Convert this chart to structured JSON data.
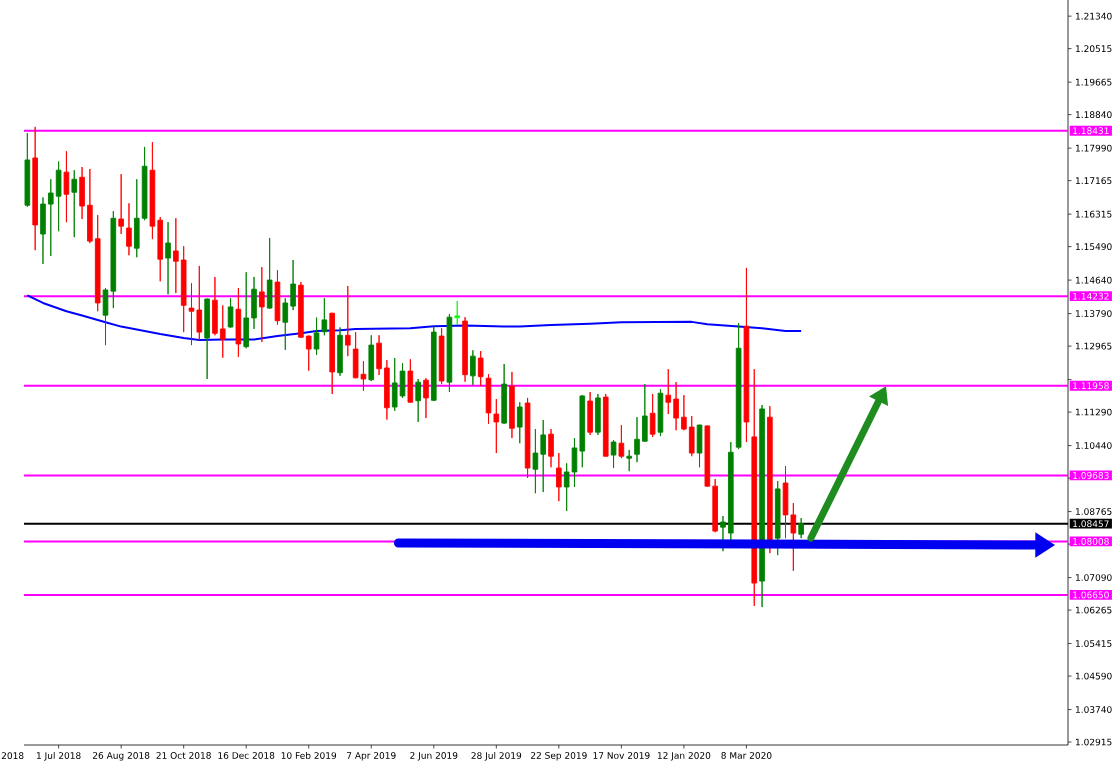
{
  "chart_data": {
    "type": "candlestick",
    "x": [
      "2018-06-03",
      "2018-06-10",
      "2018-06-17",
      "2018-06-24",
      "2018-07-01",
      "2018-07-08",
      "2018-07-15",
      "2018-07-22",
      "2018-07-29",
      "2018-08-05",
      "2018-08-12",
      "2018-08-19",
      "2018-08-26",
      "2018-09-02",
      "2018-09-09",
      "2018-09-16",
      "2018-09-23",
      "2018-09-30",
      "2018-10-07",
      "2018-10-14",
      "2018-10-21",
      "2018-10-28",
      "2018-11-04",
      "2018-11-11",
      "2018-11-18",
      "2018-11-25",
      "2018-12-02",
      "2018-12-09",
      "2018-12-16",
      "2018-12-23",
      "2018-12-30",
      "2019-01-06",
      "2019-01-13",
      "2019-01-20",
      "2019-01-27",
      "2019-02-03",
      "2019-02-10",
      "2019-02-17",
      "2019-02-24",
      "2019-03-03",
      "2019-03-10",
      "2019-03-17",
      "2019-03-24",
      "2019-03-31",
      "2019-04-07",
      "2019-04-14",
      "2019-04-21",
      "2019-04-28",
      "2019-05-05",
      "2019-05-12",
      "2019-05-19",
      "2019-05-26",
      "2019-06-02",
      "2019-06-09",
      "2019-06-16",
      "2019-06-23",
      "2019-06-30",
      "2019-07-07",
      "2019-07-14",
      "2019-07-21",
      "2019-07-28",
      "2019-08-04",
      "2019-08-11",
      "2019-08-18",
      "2019-08-25",
      "2019-09-01",
      "2019-09-08",
      "2019-09-15",
      "2019-09-22",
      "2019-09-29",
      "2019-10-06",
      "2019-10-13",
      "2019-10-20",
      "2019-10-27",
      "2019-11-03",
      "2019-11-10",
      "2019-11-17",
      "2019-11-24",
      "2019-12-01",
      "2019-12-08",
      "2019-12-15",
      "2019-12-22",
      "2019-12-29",
      "2020-01-05",
      "2020-01-12",
      "2020-01-19",
      "2020-01-26",
      "2020-02-02",
      "2020-02-09",
      "2020-02-16",
      "2020-02-23",
      "2020-03-01",
      "2020-03-08",
      "2020-03-15",
      "2020-03-22",
      "2020-03-29",
      "2020-04-05",
      "2020-04-12",
      "2020-04-19",
      "2020-04-26"
    ],
    "ohlc": [
      [
        1.1654,
        1.1837,
        1.165,
        1.1769
      ],
      [
        1.1774,
        1.1853,
        1.154,
        1.1604
      ],
      [
        1.1581,
        1.1674,
        1.1505,
        1.1657
      ],
      [
        1.1657,
        1.172,
        1.1525,
        1.1685
      ],
      [
        1.1677,
        1.1765,
        1.1588,
        1.1743
      ],
      [
        1.1738,
        1.1791,
        1.1611,
        1.1682
      ],
      [
        1.1687,
        1.1743,
        1.1573,
        1.172
      ],
      [
        1.1725,
        1.1751,
        1.1619,
        1.1652
      ],
      [
        1.1654,
        1.1746,
        1.1558,
        1.1563
      ],
      [
        1.1569,
        1.1629,
        1.1385,
        1.1406
      ],
      [
        1.1375,
        1.1444,
        1.1299,
        1.1439
      ],
      [
        1.1436,
        1.1639,
        1.1393,
        1.1621
      ],
      [
        1.1619,
        1.1733,
        1.1581,
        1.1601
      ],
      [
        1.1596,
        1.1659,
        1.1527,
        1.155
      ],
      [
        1.1545,
        1.172,
        1.1522,
        1.1621
      ],
      [
        1.1621,
        1.1802,
        1.1616,
        1.1753
      ],
      [
        1.1743,
        1.1814,
        1.1568,
        1.1601
      ],
      [
        1.1616,
        1.1624,
        1.1461,
        1.1517
      ],
      [
        1.152,
        1.1611,
        1.1428,
        1.1558
      ],
      [
        1.1538,
        1.1621,
        1.1431,
        1.1512
      ],
      [
        1.1515,
        1.155,
        1.1332,
        1.14
      ],
      [
        1.1393,
        1.1456,
        1.1299,
        1.1385
      ],
      [
        1.1388,
        1.15,
        1.1312,
        1.1332
      ],
      [
        1.1317,
        1.1417,
        1.1213,
        1.1416
      ],
      [
        1.1413,
        1.1472,
        1.1324,
        1.1329
      ],
      [
        1.134,
        1.14,
        1.1267,
        1.1314
      ],
      [
        1.1345,
        1.1418,
        1.1343,
        1.1396
      ],
      [
        1.139,
        1.1444,
        1.1269,
        1.1302
      ],
      [
        1.1295,
        1.1484,
        1.1291,
        1.1368
      ],
      [
        1.1368,
        1.1472,
        1.134,
        1.1441
      ],
      [
        1.1434,
        1.1497,
        1.1307,
        1.1396
      ],
      [
        1.1393,
        1.1571,
        1.1391,
        1.1464
      ],
      [
        1.1459,
        1.1489,
        1.1351,
        1.1361
      ],
      [
        1.1357,
        1.1418,
        1.1287,
        1.1406
      ],
      [
        1.1398,
        1.1515,
        1.1388,
        1.1454
      ],
      [
        1.1451,
        1.1459,
        1.1318,
        1.1319
      ],
      [
        1.1322,
        1.1323,
        1.1234,
        1.1289
      ],
      [
        1.1289,
        1.1369,
        1.1274,
        1.133
      ],
      [
        1.1333,
        1.1418,
        1.1324,
        1.1363
      ],
      [
        1.138,
        1.1381,
        1.1175,
        1.1231
      ],
      [
        1.1229,
        1.1344,
        1.1221,
        1.1324
      ],
      [
        1.1324,
        1.1449,
        1.1271,
        1.1299
      ],
      [
        1.1289,
        1.1332,
        1.1215,
        1.1216
      ],
      [
        1.1225,
        1.1258,
        1.1183,
        1.1213
      ],
      [
        1.1211,
        1.1324,
        1.1208,
        1.1299
      ],
      [
        1.1304,
        1.1324,
        1.1223,
        1.1239
      ],
      [
        1.1241,
        1.1261,
        1.111,
        1.114
      ],
      [
        1.1142,
        1.1266,
        1.1132,
        1.1203
      ],
      [
        1.117,
        1.1253,
        1.1165,
        1.1233
      ],
      [
        1.1233,
        1.1263,
        1.1153,
        1.1154
      ],
      [
        1.1158,
        1.1213,
        1.1104,
        1.1205
      ],
      [
        1.121,
        1.1215,
        1.1114,
        1.1165
      ],
      [
        1.1159,
        1.1346,
        1.1157,
        1.1332
      ],
      [
        1.1322,
        1.1342,
        1.12,
        1.1208
      ],
      [
        1.1205,
        1.1378,
        1.118,
        1.137
      ],
      [
        1.1371,
        1.1411,
        1.135,
        1.1371
      ],
      [
        1.136,
        1.137,
        1.1206,
        1.1224
      ],
      [
        1.1221,
        1.1286,
        1.1198,
        1.1271
      ],
      [
        1.1266,
        1.1284,
        1.1195,
        1.1219
      ],
      [
        1.1215,
        1.1225,
        1.1099,
        1.1127
      ],
      [
        1.1124,
        1.1162,
        1.1025,
        1.1104
      ],
      [
        1.1101,
        1.1251,
        1.1099,
        1.12
      ],
      [
        1.1195,
        1.1231,
        1.1063,
        1.1088
      ],
      [
        1.1091,
        1.1154,
        1.105,
        1.1142
      ],
      [
        1.1152,
        1.1165,
        1.0962,
        1.0987
      ],
      [
        1.0984,
        1.1086,
        1.0923,
        1.1025
      ],
      [
        1.1022,
        1.1109,
        1.0926,
        1.1071
      ],
      [
        1.1073,
        1.1086,
        1.0989,
        1.1017
      ],
      [
        1.0987,
        1.1025,
        1.0903,
        1.0939
      ],
      [
        1.0939,
        1.0999,
        1.0878,
        1.0977
      ],
      [
        1.0977,
        1.1063,
        1.0939,
        1.1038
      ],
      [
        1.103,
        1.1172,
        1.0989,
        1.117
      ],
      [
        1.1157,
        1.118,
        1.1071,
        1.1078
      ],
      [
        1.1078,
        1.1175,
        1.1071,
        1.1165
      ],
      [
        1.1167,
        1.1175,
        1.1016,
        1.1017
      ],
      [
        1.102,
        1.1058,
        1.0987,
        1.1053
      ],
      [
        1.105,
        1.1096,
        1.1012,
        1.1017
      ],
      [
        1.1012,
        1.1033,
        1.0979,
        1.1017
      ],
      [
        1.1022,
        1.1116,
        1.1002,
        1.106
      ],
      [
        1.1055,
        1.12,
        1.1054,
        1.1119
      ],
      [
        1.1126,
        1.1175,
        1.1066,
        1.1073
      ],
      [
        1.1078,
        1.1187,
        1.1068,
        1.1177
      ],
      [
        1.1172,
        1.1238,
        1.1124,
        1.1154
      ],
      [
        1.1162,
        1.1205,
        1.1083,
        1.1114
      ],
      [
        1.1116,
        1.1172,
        1.1083,
        1.1086
      ],
      [
        1.1091,
        1.1119,
        1.1017,
        1.1025
      ],
      [
        1.1025,
        1.1097,
        1.0989,
        1.1096
      ],
      [
        1.1094,
        1.1095,
        1.094,
        1.0941
      ],
      [
        1.0941,
        1.0959,
        1.0824,
        1.0827
      ],
      [
        1.0837,
        1.0865,
        1.0776,
        1.085
      ],
      [
        1.0822,
        1.1053,
        1.0802,
        1.1027
      ],
      [
        1.104,
        1.1355,
        1.1035,
        1.1291
      ],
      [
        1.1347,
        1.1495,
        1.1053,
        1.1104
      ],
      [
        1.1066,
        1.1238,
        1.0637,
        1.0695
      ],
      [
        1.07,
        1.1147,
        1.0634,
        1.1137
      ],
      [
        1.1116,
        1.1144,
        1.0771,
        1.0804
      ],
      [
        1.0809,
        1.0954,
        1.0766,
        1.0934
      ],
      [
        1.0949,
        1.0992,
        1.0809,
        1.0868
      ],
      [
        1.0868,
        1.0898,
        1.0726,
        1.0822
      ],
      [
        1.0819,
        1.086,
        1.0809,
        1.0846
      ]
    ],
    "colors": [
      "#008000",
      "#ff0000",
      "#008000",
      "#008000",
      "#008000",
      "#ff0000",
      "#008000",
      "#ff0000",
      "#ff0000",
      "#ff0000",
      "#008000",
      "#008000",
      "#ff0000",
      "#ff0000",
      "#008000",
      "#008000",
      "#ff0000",
      "#ff0000",
      "#008000",
      "#ff0000",
      "#ff0000",
      "#ff0000",
      "#ff0000",
      "#008000",
      "#ff0000",
      "#ff0000",
      "#008000",
      "#ff0000",
      "#008000",
      "#008000",
      "#ff0000",
      "#008000",
      "#ff0000",
      "#008000",
      "#008000",
      "#ff0000",
      "#ff0000",
      "#008000",
      "#008000",
      "#ff0000",
      "#008000",
      "#ff0000",
      "#ff0000",
      "#ff0000",
      "#008000",
      "#ff0000",
      "#ff0000",
      "#008000",
      "#008000",
      "#ff0000",
      "#008000",
      "#ff0000",
      "#008000",
      "#ff0000",
      "#008000",
      "#00ff00",
      "#ff0000",
      "#008000",
      "#ff0000",
      "#ff0000",
      "#ff0000",
      "#008000",
      "#ff0000",
      "#008000",
      "#ff0000",
      "#008000",
      "#008000",
      "#ff0000",
      "#ff0000",
      "#008000",
      "#008000",
      "#008000",
      "#ff0000",
      "#008000",
      "#ff0000",
      "#008000",
      "#ff0000",
      "#008000",
      "#008000",
      "#008000",
      "#ff0000",
      "#008000",
      "#ff0000",
      "#ff0000",
      "#ff0000",
      "#ff0000",
      "#008000",
      "#ff0000",
      "#ff0000",
      "#008000",
      "#008000",
      "#008000",
      "#ff0000",
      "#ff0000",
      "#008000",
      "#ff0000",
      "#008000",
      "#ff0000",
      "#ff0000",
      "#008000"
    ],
    "series": [
      {
        "type": "line",
        "color": "#0000ff",
        "x": [
          "2018-06-03",
          "2018-06-17",
          "2018-07-08",
          "2018-07-22",
          "2018-08-12",
          "2018-08-26",
          "2018-09-16",
          "2018-09-30",
          "2018-10-21",
          "2018-11-04",
          "2018-11-25",
          "2018-12-23",
          "2019-01-13",
          "2019-02-03",
          "2019-02-17",
          "2019-03-10",
          "2019-03-24",
          "2019-05-12",
          "2019-06-02",
          "2019-06-30",
          "2019-08-04",
          "2019-08-18",
          "2019-09-15",
          "2019-10-20",
          "2019-11-17",
          "2020-01-19",
          "2020-02-02",
          "2020-03-01",
          "2020-03-22",
          "2020-04-12",
          "2020-04-26"
        ],
        "values": [
          1.1425,
          1.1406,
          1.1385,
          1.1374,
          1.1357,
          1.1346,
          1.1335,
          1.1327,
          1.1317,
          1.1312,
          1.1313,
          1.1313,
          1.1322,
          1.1329,
          1.1335,
          1.1337,
          1.134,
          1.1342,
          1.1347,
          1.1349,
          1.1346,
          1.1346,
          1.135,
          1.1353,
          1.1357,
          1.1358,
          1.1352,
          1.1346,
          1.1342,
          1.1335,
          1.1335
        ]
      }
    ],
    "xlim": [
      "2018-05-31",
      "2020-12-21"
    ],
    "xticks": [
      {
        "value": "2018-07-01",
        "label": "1 Jul 2018"
      },
      {
        "value": "2018-08-26",
        "label": "26 Aug 2018"
      },
      {
        "value": "2018-10-21",
        "label": "21 Oct 2018"
      },
      {
        "value": "2018-12-16",
        "label": "16 Dec 2018"
      },
      {
        "value": "2019-02-10",
        "label": "10 Feb 2019"
      },
      {
        "value": "2019-04-07",
        "label": "7 Apr 2019"
      },
      {
        "value": "2019-06-02",
        "label": "2 Jun 2019"
      },
      {
        "value": "2019-07-28",
        "label": "28 Jul 2019"
      },
      {
        "value": "2019-09-22",
        "label": "22 Sep 2019"
      },
      {
        "value": "2019-11-17",
        "label": "17 Nov 2019"
      },
      {
        "value": "2020-01-12",
        "label": "12 Jan 2020"
      },
      {
        "value": "2020-03-08",
        "label": "8 Mar 2020"
      }
    ],
    "ylim": [
      1.0284,
      1.2175
    ],
    "yticks": [
      {
        "value": 1.2134,
        "label": "1.21340"
      },
      1.20515,
      1.19665,
      {
        "value": 1.1884,
        "label": "1.18840"
      },
      {
        "value": 1.1799,
        "label": "1.17990"
      },
      1.17165,
      1.16315,
      {
        "value": 1.1549,
        "label": "1.15490"
      },
      {
        "value": 1.1464,
        "label": "1.14640"
      },
      {
        "value": 1.1379,
        "label": "1.13790"
      },
      1.12965,
      {
        "value": 1.12115,
        "label": null
      },
      {
        "value": 1.1129,
        "label": "1.11290"
      },
      {
        "value": 1.1044,
        "label": "1.10440"
      },
      {
        "value": 1.09615,
        "label": null
      },
      1.08765,
      {
        "value": 1.0794,
        "label": null
      },
      {
        "value": 1.0709,
        "label": "1.07090"
      },
      1.06265,
      1.05415,
      {
        "value": 1.0459,
        "label": "1.04590"
      },
      {
        "value": 1.0374,
        "label": "1.03740"
      },
      1.02915
    ],
    "ref_lines": [
      {
        "axis": "y",
        "value": 1.18431,
        "label": "1.18431",
        "color": "#ff00ff"
      },
      {
        "axis": "y",
        "value": 1.14232,
        "label": "1.14232",
        "color": "#ff00ff"
      },
      {
        "axis": "y",
        "value": 1.11958,
        "label": "1.11958",
        "color": "#ff00ff"
      },
      {
        "axis": "y",
        "value": 1.09683,
        "label": "1.09683",
        "color": "#ff00ff"
      },
      {
        "axis": "y",
        "value": 1.08457,
        "label": "1.08457",
        "color": "#000000"
      },
      {
        "axis": "y",
        "value": 1.08008,
        "label": "1.08008",
        "color": "#ff00ff"
      },
      {
        "axis": "y",
        "value": 1.0665,
        "label": "1.06650",
        "color": "#ff00ff"
      }
    ],
    "annotations": [
      "2018"
    ]
  }
}
